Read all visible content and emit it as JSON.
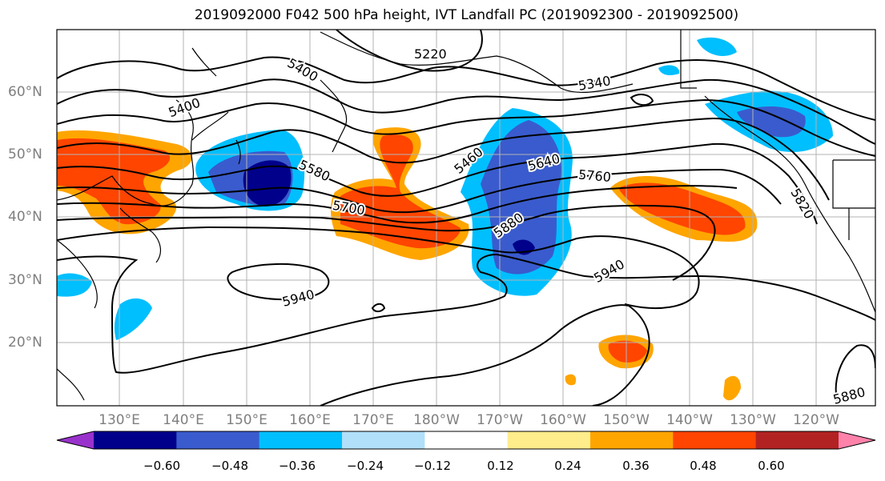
{
  "title": "2019092000 F042 500 hPa height, IVT Landfall PC (2019092300 - 2019092500)",
  "lon_labels": [
    "130°E",
    "140°E",
    "150°E",
    "160°E",
    "170°E",
    "180°W",
    "170°W",
    "160°W",
    "150°W",
    "140°W",
    "130°W",
    "120°W"
  ],
  "lat_labels": [
    "60°N",
    "50°N",
    "40°N",
    "30°N",
    "20°N"
  ],
  "contour_labels": [
    "5220",
    "5400",
    "5400",
    "5340",
    "5460",
    "5580",
    "5640",
    "5700",
    "5760",
    "5820",
    "5880",
    "5880",
    "5940",
    "5940"
  ],
  "colorbar": {
    "tick_labels": [
      "−0.60",
      "−0.48",
      "−0.36",
      "−0.24",
      "−0.12",
      "0.12",
      "0.24",
      "0.36",
      "0.48",
      "0.60"
    ],
    "colors": [
      "#9932cc",
      "#00008b",
      "#3a5bcd",
      "#00bfff",
      "#b0e0fa",
      "#ffffff",
      "#ffec8b",
      "#ffa500",
      "#ff4500",
      "#b22222",
      "#ff82ab"
    ]
  }
}
